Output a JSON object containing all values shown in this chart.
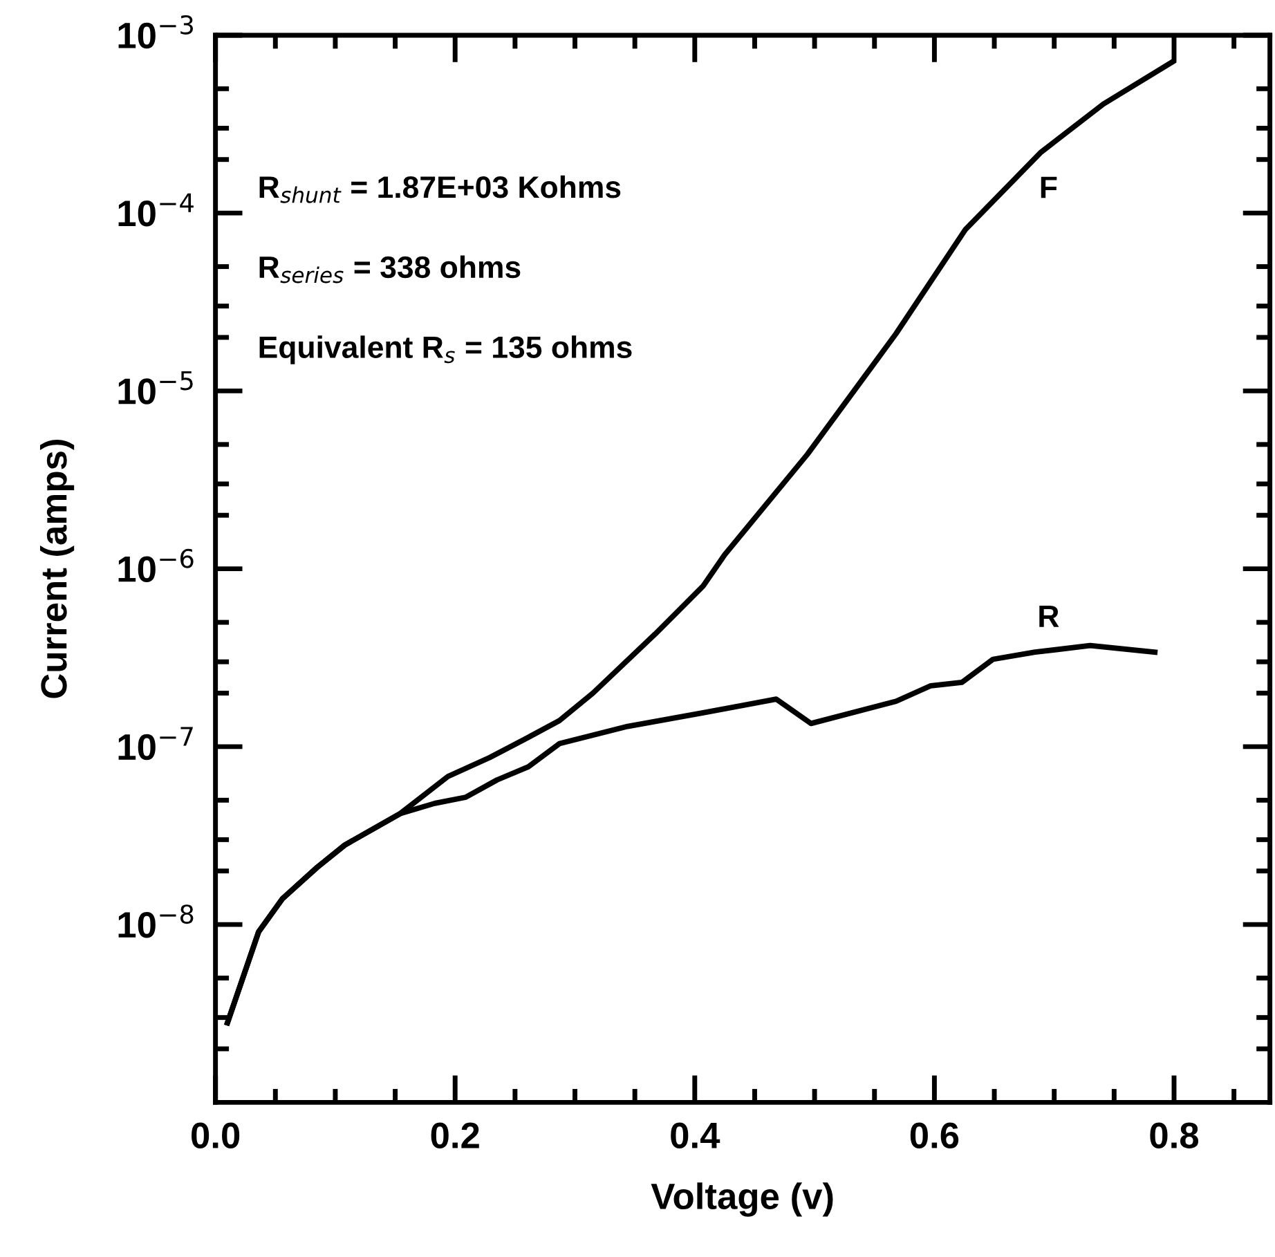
{
  "chart_data": {
    "type": "line",
    "xlabel": "Voltage (v)",
    "ylabel": "Current (amps)",
    "log": "y",
    "grid": false,
    "marker": "none",
    "line_style": "solid",
    "xlim": [
      0,
      0.88
    ],
    "xticks": [
      {
        "value": 0,
        "label": "0.0"
      },
      0.2,
      0.4,
      0.6,
      0.8
    ],
    "ylim": [
      1e-09,
      0.001
    ],
    "yticks": [
      {
        "value": 1e-08,
        "label": "10$^{−8}$"
      },
      {
        "value": 1e-07,
        "label": "10$^{−7}$"
      },
      {
        "value": 1e-06,
        "label": "10$^{−6}$"
      },
      {
        "value": 1e-05,
        "label": "10$^{−5}$"
      },
      {
        "value": 0.0001,
        "label": "10$^{−4}$"
      },
      {
        "value": 0.001,
        "label": "10$^{−3}$"
      }
    ],
    "series": [
      {
        "color": "#000000",
        "x": [
          0.01,
          0.036,
          0.056,
          0.085,
          0.108,
          0.154,
          0.194,
          0.229,
          0.258,
          0.287,
          0.315,
          0.367,
          0.407,
          0.425,
          0.494,
          0.568,
          0.626,
          0.689,
          0.741,
          0.799
        ],
        "values": [
          2.8e-09,
          9.1e-09,
          1.4e-08,
          2.1e-08,
          2.8e-08,
          4.2e-08,
          6.8e-08,
          8.7e-08,
          1.1e-07,
          1.4e-07,
          2e-07,
          4.3e-07,
          8e-07,
          1.2e-06,
          4.4e-06,
          2.1e-05,
          8.1e-05,
          0.00022,
          0.00041,
          0.00071
        ]
      },
      {
        "color": "#000000",
        "x": [
          0.01,
          0.036,
          0.056,
          0.085,
          0.108,
          0.154,
          0.183,
          0.209,
          0.235,
          0.261,
          0.287,
          0.344,
          0.407,
          0.468,
          0.497,
          0.568,
          0.597,
          0.623,
          0.649,
          0.684,
          0.73,
          0.784
        ],
        "values": [
          2.8e-09,
          9.1e-09,
          1.4e-08,
          2.1e-08,
          2.8e-08,
          4.2e-08,
          4.8e-08,
          5.2e-08,
          6.5e-08,
          7.7e-08,
          1.04e-07,
          1.3e-07,
          1.55e-07,
          1.85e-07,
          1.35e-07,
          1.8e-07,
          2.2e-07,
          2.3e-07,
          3.1e-07,
          3.4e-07,
          3.7e-07,
          3.4e-07
        ]
      }
    ],
    "annotations": [
      "R$_{shunt}$ = 1.87E+03 Kohms",
      "R$_{series}$ = 338 ohms",
      "Equivalent R$_{s}$ = 135 ohms",
      "F",
      "R"
    ]
  }
}
